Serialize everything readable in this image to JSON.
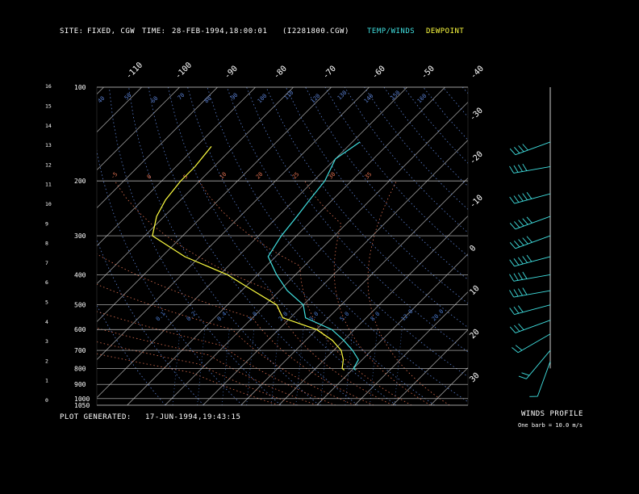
{
  "header": {
    "site_label": "SITE:",
    "site_value": "FIXED, CGW",
    "time_label": "TIME:",
    "time_value": "28-FEB-1994,18:00:01",
    "file_value": "(I2281800.CGW)",
    "legend_temp": "TEMP/WINDS",
    "legend_dew": "DEWPOINT"
  },
  "footer": {
    "generated_label": "PLOT GENERATED:",
    "generated_value": "17-JUN-1994,19:43:15"
  },
  "winds": {
    "title": "WINDS PROFILE",
    "note": "One barb = 10.0 m/s"
  },
  "colors": {
    "temperature": "#40e0e0",
    "dewpoint": "#ffff40",
    "isobar": "#c8c8c8",
    "isotherm": "#c8c8c8",
    "dry_adiabat": "#5a7fd0",
    "moist_adiabat": "#e07050",
    "mixing_ratio": "#4a7ad0"
  },
  "chart_data": {
    "type": "line",
    "pressure_levels": [
      100,
      200,
      300,
      400,
      500,
      600,
      700,
      800,
      900,
      1000,
      1050
    ],
    "height_ticks_km": [
      0,
      1,
      2,
      3,
      4,
      5,
      6,
      7,
      8,
      9,
      10,
      11,
      12,
      13,
      14,
      15,
      16
    ],
    "top_temp_labels": [
      "-110",
      "-100",
      "-90",
      "-80",
      "-70",
      "-60",
      "-50",
      "-40"
    ],
    "right_temp_labels": [
      "-30",
      "-20",
      "-10",
      "0",
      "10",
      "20",
      "30"
    ],
    "dry_adiabat_labels": [
      "40",
      "50",
      "60",
      "70",
      "80",
      "90",
      "100",
      "110",
      "120",
      "130",
      "140",
      "150",
      "160"
    ],
    "moist_adiabat_labels": [
      "-5",
      "0",
      "5",
      "10",
      "20",
      "25",
      "30",
      "35"
    ],
    "mixing_ratio_labels": [
      "0.1",
      "0.2",
      "0.4",
      "1.0",
      "2.0",
      "3.0",
      "5.0",
      "8.0",
      "12.0",
      "20.0"
    ],
    "series": [
      {
        "name": "TEMP/WINDS",
        "points": [
          [
            150,
            -58
          ],
          [
            170,
            -60
          ],
          [
            200,
            -57
          ],
          [
            230,
            -56
          ],
          [
            260,
            -55
          ],
          [
            300,
            -54
          ],
          [
            350,
            -52
          ],
          [
            400,
            -45
          ],
          [
            450,
            -38
          ],
          [
            500,
            -30
          ],
          [
            550,
            -26
          ],
          [
            600,
            -16
          ],
          [
            650,
            -10
          ],
          [
            700,
            -5
          ],
          [
            750,
            -1
          ],
          [
            800,
            0
          ],
          [
            810,
            1
          ]
        ]
      },
      {
        "name": "DEWPOINT",
        "points": [
          [
            155,
            -96
          ],
          [
            180,
            -95
          ],
          [
            200,
            -95
          ],
          [
            230,
            -94
          ],
          [
            260,
            -92
          ],
          [
            300,
            -88
          ],
          [
            350,
            -74
          ],
          [
            400,
            -58
          ],
          [
            450,
            -47
          ],
          [
            500,
            -37
          ],
          [
            550,
            -32
          ],
          [
            600,
            -20
          ],
          [
            650,
            -13
          ],
          [
            700,
            -8
          ],
          [
            750,
            -5
          ],
          [
            800,
            -3
          ],
          [
            810,
            -2
          ]
        ]
      }
    ],
    "wind_barbs": [
      {
        "pressure": 150,
        "dir": 250,
        "speed": 35
      },
      {
        "pressure": 180,
        "dir": 260,
        "speed": 40
      },
      {
        "pressure": 220,
        "dir": 255,
        "speed": 45
      },
      {
        "pressure": 260,
        "dir": 250,
        "speed": 50
      },
      {
        "pressure": 300,
        "dir": 250,
        "speed": 50
      },
      {
        "pressure": 350,
        "dir": 255,
        "speed": 45
      },
      {
        "pressure": 400,
        "dir": 260,
        "speed": 40
      },
      {
        "pressure": 450,
        "dir": 260,
        "speed": 35
      },
      {
        "pressure": 500,
        "dir": 255,
        "speed": 30
      },
      {
        "pressure": 560,
        "dir": 250,
        "speed": 25
      },
      {
        "pressure": 620,
        "dir": 240,
        "speed": 20
      },
      {
        "pressure": 700,
        "dir": 220,
        "speed": 15
      },
      {
        "pressure": 760,
        "dir": 200,
        "speed": 10
      }
    ]
  }
}
